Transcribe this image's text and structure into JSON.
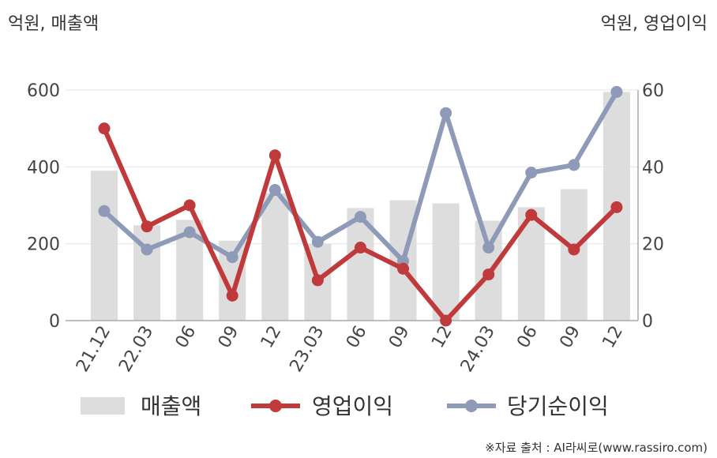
{
  "chart_data": {
    "type": "bar",
    "left_axis_label": "억원, 매출액",
    "right_axis_label": "억원, 영업이익",
    "categories": [
      "21.12",
      "22.03",
      "06",
      "09",
      "12",
      "23.03",
      "06",
      "09",
      "12",
      "24.03",
      "06",
      "09",
      "12"
    ],
    "left_axis": {
      "ylim": [
        0,
        600
      ],
      "ticks": [
        0,
        200,
        400,
        600
      ]
    },
    "right_axis": {
      "ylim": [
        0,
        60
      ],
      "ticks": [
        0,
        20,
        40,
        60
      ]
    },
    "grid": true,
    "legend_position": "bottom",
    "series": [
      {
        "name": "매출액",
        "type": "bar",
        "axis": "left",
        "color": "#dddddd",
        "values": [
          390,
          248,
          262,
          208,
          332,
          200,
          293,
          313,
          305,
          260,
          295,
          342,
          595
        ]
      },
      {
        "name": "영업이익",
        "type": "line",
        "axis": "right",
        "color": "#c0393b",
        "values": [
          50,
          24.5,
          30,
          6.5,
          43,
          10.5,
          19,
          13.5,
          0,
          12,
          27.5,
          18.5,
          29.5
        ]
      },
      {
        "name": "당기순이익",
        "type": "line",
        "axis": "right",
        "color": "#8e9ab7",
        "values": [
          28.5,
          18.5,
          23,
          16.5,
          34,
          20.5,
          27,
          15.5,
          54,
          19,
          38.5,
          40.5,
          59.5
        ]
      }
    ],
    "source": "※자료 출처 : AI라씨로(www.rassiro.com)"
  }
}
